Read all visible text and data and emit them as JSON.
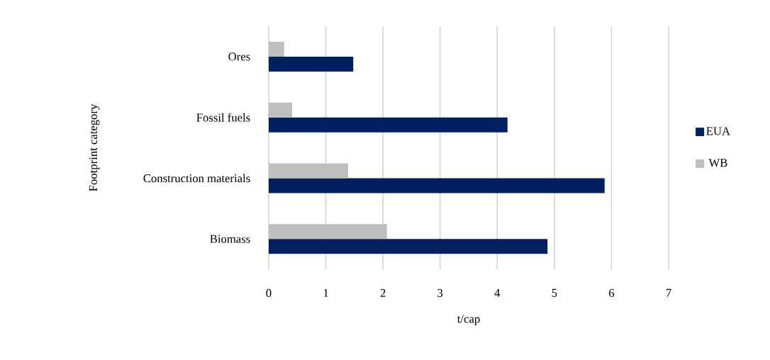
{
  "chart_data": {
    "type": "bar",
    "orientation": "horizontal",
    "xlabel": "t/cap",
    "ylabel": "Footprint category",
    "categories": [
      "Ores",
      "Fossil fuels",
      "Construction materials",
      "Biomass"
    ],
    "series": [
      {
        "name": "EUA",
        "color": "#002060",
        "values": [
          1.48,
          4.18,
          5.88,
          4.88
        ]
      },
      {
        "name": "WB",
        "color": "#bfbfbf",
        "values": [
          0.27,
          0.41,
          1.39,
          2.07
        ]
      }
    ],
    "xlim": [
      0,
      7
    ],
    "xticks": [
      0,
      1,
      2,
      3,
      4,
      5,
      6,
      7
    ],
    "grid": "x",
    "legend": "right"
  }
}
